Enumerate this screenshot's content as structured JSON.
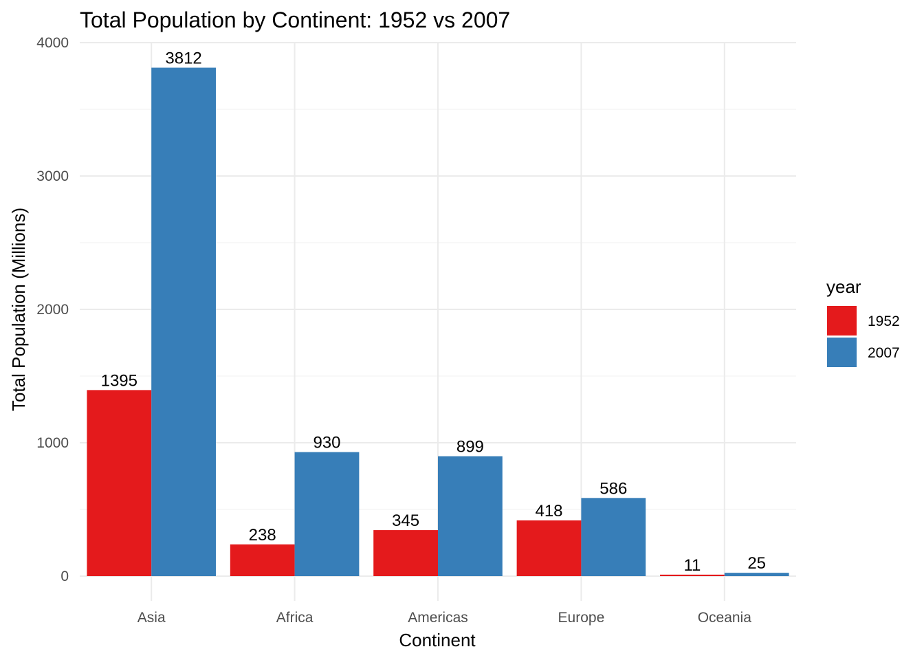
{
  "chart_data": {
    "type": "bar",
    "title": "Total Population by Continent: 1952 vs 2007",
    "xlabel": "Continent",
    "ylabel": "Total Population (Millions)",
    "categories": [
      "Asia",
      "Africa",
      "Americas",
      "Europe",
      "Oceania"
    ],
    "series": [
      {
        "name": "1952",
        "color": "#e41a1c",
        "values": [
          1395,
          238,
          345,
          418,
          11
        ]
      },
      {
        "name": "2007",
        "color": "#377eb8",
        "values": [
          3812,
          930,
          899,
          586,
          25
        ]
      }
    ],
    "ylim": [
      0,
      4000
    ],
    "yticks": [
      0,
      1000,
      2000,
      3000,
      4000
    ],
    "grid": true,
    "legend": {
      "title": "year",
      "position": "right"
    }
  }
}
